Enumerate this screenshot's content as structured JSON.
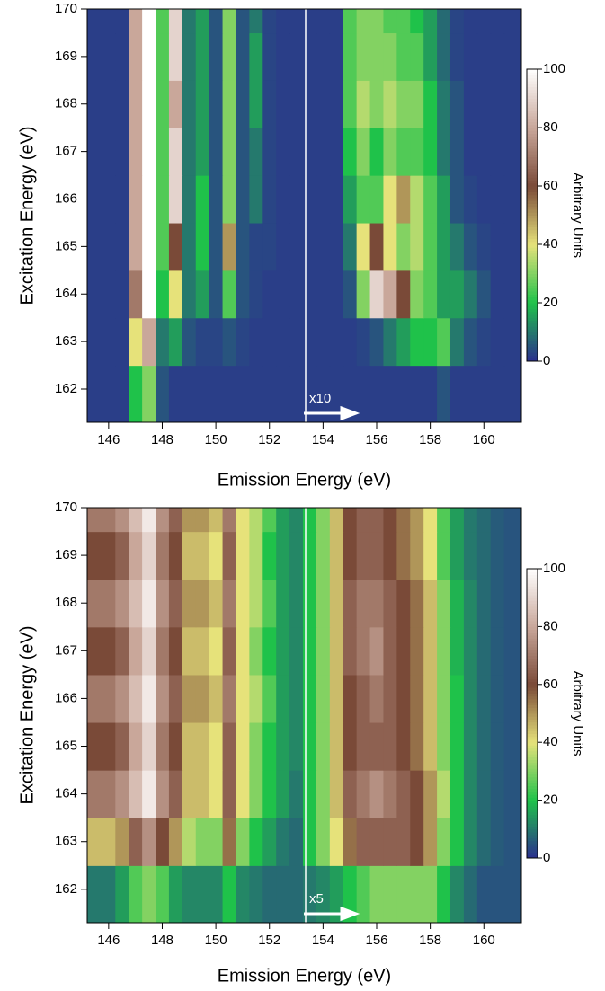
{
  "chart_data": [
    {
      "type": "heatmap",
      "xlabel": "Emission Energy (eV)",
      "ylabel": "Excitation Energy (eV)",
      "annotation": "x10",
      "xlim": [
        145.2,
        161.4
      ],
      "ylim": [
        161.3,
        170
      ],
      "xticks": [
        146,
        148,
        150,
        152,
        154,
        156,
        158,
        160
      ],
      "yticks": [
        162,
        163,
        164,
        165,
        166,
        167,
        168,
        169,
        170
      ],
      "x": [
        145.5,
        146,
        146.5,
        147,
        147.5,
        148,
        148.5,
        149,
        149.5,
        150,
        150.5,
        151,
        151.5,
        152,
        152.5,
        153,
        153.5,
        154,
        154.5,
        155,
        155.5,
        156,
        156.5,
        157,
        157.5,
        158,
        158.5,
        159,
        159.5,
        160,
        160.5,
        161
      ],
      "y": [
        162,
        163,
        164,
        165,
        166,
        167,
        168,
        169,
        170
      ],
      "z": [
        [
          2,
          2,
          2,
          20,
          30,
          5,
          2,
          2,
          2,
          2,
          2,
          2,
          2,
          2,
          2,
          2,
          2,
          2,
          2,
          2,
          2,
          2,
          2,
          2,
          2,
          2,
          5,
          2,
          2,
          2,
          2,
          2
        ],
        [
          2,
          2,
          2,
          40,
          80,
          10,
          15,
          5,
          3,
          3,
          5,
          3,
          2,
          2,
          2,
          2,
          2,
          2,
          2,
          2,
          3,
          5,
          10,
          15,
          20,
          20,
          25,
          10,
          5,
          3,
          2,
          2
        ],
        [
          2,
          2,
          2,
          70,
          100,
          20,
          40,
          10,
          15,
          5,
          25,
          5,
          3,
          2,
          2,
          2,
          2,
          2,
          2,
          5,
          30,
          90,
          80,
          60,
          30,
          25,
          15,
          15,
          10,
          5,
          2,
          2
        ],
        [
          2,
          2,
          2,
          80,
          100,
          25,
          60,
          10,
          20,
          5,
          50,
          5,
          3,
          3,
          2,
          2,
          2,
          2,
          2,
          10,
          40,
          60,
          40,
          30,
          35,
          25,
          15,
          10,
          5,
          3,
          2,
          2
        ],
        [
          2,
          2,
          2,
          80,
          100,
          25,
          90,
          10,
          20,
          5,
          30,
          5,
          10,
          3,
          2,
          2,
          2,
          2,
          2,
          15,
          25,
          25,
          40,
          50,
          35,
          25,
          15,
          5,
          3,
          2,
          2,
          2
        ],
        [
          2,
          2,
          2,
          80,
          100,
          25,
          90,
          10,
          15,
          5,
          30,
          5,
          10,
          3,
          2,
          2,
          2,
          2,
          2,
          20,
          30,
          20,
          30,
          25,
          25,
          20,
          10,
          5,
          2,
          2,
          2,
          2
        ],
        [
          2,
          2,
          2,
          80,
          100,
          25,
          80,
          10,
          15,
          5,
          30,
          5,
          15,
          3,
          2,
          2,
          2,
          2,
          2,
          25,
          35,
          30,
          35,
          30,
          30,
          20,
          10,
          5,
          2,
          2,
          2,
          2
        ],
        [
          2,
          2,
          2,
          80,
          100,
          25,
          90,
          10,
          15,
          5,
          30,
          5,
          15,
          3,
          2,
          2,
          2,
          2,
          2,
          25,
          30,
          30,
          30,
          25,
          25,
          15,
          8,
          3,
          2,
          2,
          2,
          2
        ],
        [
          2,
          2,
          2,
          80,
          100,
          25,
          90,
          10,
          15,
          5,
          30,
          5,
          10,
          3,
          2,
          2,
          2,
          2,
          2,
          25,
          30,
          30,
          25,
          25,
          20,
          15,
          8,
          3,
          2,
          2,
          2,
          2
        ]
      ],
      "colorbar": {
        "label": "Arbitrary Units",
        "lim": [
          0,
          100
        ],
        "ticks": [
          0,
          20,
          40,
          60,
          80,
          100
        ],
        "colors": [
          "#2b2f8f",
          "#1fc24a",
          "#e6e27a",
          "#7a4a38",
          "#c9a79a",
          "#ffffff"
        ]
      }
    },
    {
      "type": "heatmap",
      "xlabel": "Emission Energy (eV)",
      "ylabel": "Excitation Energy (eV)",
      "annotation": "x5",
      "xlim": [
        145.2,
        161.4
      ],
      "ylim": [
        161.3,
        170
      ],
      "xticks": [
        146,
        148,
        150,
        152,
        154,
        156,
        158,
        160
      ],
      "yticks": [
        162,
        163,
        164,
        165,
        166,
        167,
        168,
        169,
        170
      ],
      "x": [
        145.5,
        146,
        146.5,
        147,
        147.5,
        148,
        148.5,
        149,
        149.5,
        150,
        150.5,
        151,
        151.5,
        152,
        152.5,
        153,
        153.5,
        154,
        154.5,
        155,
        155.5,
        156,
        156.5,
        157,
        157.5,
        158,
        158.5,
        159,
        159.5,
        160,
        160.5,
        161
      ],
      "y": [
        162,
        163,
        164,
        165,
        166,
        167,
        168,
        169,
        170
      ],
      "z": [
        [
          10,
          10,
          15,
          25,
          30,
          25,
          15,
          12,
          12,
          12,
          20,
          12,
          10,
          8,
          8,
          8,
          10,
          12,
          15,
          20,
          25,
          30,
          30,
          30,
          30,
          30,
          20,
          12,
          8,
          5,
          5,
          5
        ],
        [
          45,
          45,
          50,
          65,
          75,
          60,
          50,
          35,
          30,
          30,
          55,
          30,
          20,
          15,
          10,
          8,
          20,
          30,
          40,
          55,
          65,
          65,
          65,
          65,
          60,
          50,
          30,
          20,
          12,
          8,
          6,
          5
        ],
        [
          70,
          70,
          75,
          85,
          95,
          75,
          65,
          45,
          45,
          40,
          65,
          40,
          30,
          20,
          15,
          10,
          20,
          30,
          45,
          65,
          70,
          75,
          70,
          65,
          60,
          50,
          35,
          20,
          12,
          8,
          6,
          5
        ],
        [
          60,
          60,
          65,
          80,
          90,
          70,
          60,
          45,
          45,
          40,
          65,
          40,
          30,
          20,
          15,
          12,
          20,
          30,
          45,
          60,
          65,
          65,
          65,
          60,
          55,
          45,
          30,
          20,
          12,
          8,
          6,
          5
        ],
        [
          70,
          70,
          75,
          85,
          95,
          75,
          65,
          50,
          50,
          45,
          70,
          40,
          35,
          25,
          15,
          12,
          20,
          30,
          45,
          60,
          65,
          70,
          65,
          60,
          55,
          45,
          30,
          20,
          12,
          8,
          6,
          5
        ],
        [
          60,
          60,
          65,
          80,
          90,
          70,
          60,
          45,
          45,
          40,
          65,
          40,
          30,
          20,
          15,
          12,
          20,
          30,
          45,
          65,
          70,
          75,
          65,
          60,
          55,
          45,
          30,
          18,
          12,
          8,
          6,
          5
        ],
        [
          70,
          70,
          75,
          85,
          95,
          75,
          65,
          50,
          50,
          45,
          70,
          40,
          35,
          25,
          15,
          12,
          20,
          30,
          45,
          65,
          70,
          70,
          65,
          60,
          55,
          45,
          30,
          18,
          12,
          8,
          6,
          5
        ],
        [
          60,
          60,
          65,
          80,
          90,
          70,
          60,
          45,
          45,
          40,
          65,
          40,
          35,
          20,
          15,
          12,
          20,
          30,
          45,
          60,
          65,
          65,
          60,
          55,
          50,
          40,
          25,
          15,
          10,
          8,
          6,
          5
        ],
        [
          70,
          70,
          75,
          85,
          95,
          75,
          65,
          50,
          50,
          45,
          70,
          40,
          35,
          25,
          15,
          12,
          20,
          30,
          45,
          60,
          65,
          65,
          60,
          55,
          50,
          40,
          25,
          15,
          10,
          8,
          6,
          5
        ]
      ],
      "colorbar": {
        "label": "Arbitrary Units",
        "lim": [
          0,
          100
        ],
        "ticks": [
          0,
          20,
          40,
          60,
          80,
          100
        ],
        "colors": [
          "#2b2f8f",
          "#1fc24a",
          "#e6e27a",
          "#7a4a38",
          "#c9a79a",
          "#ffffff"
        ]
      }
    }
  ]
}
